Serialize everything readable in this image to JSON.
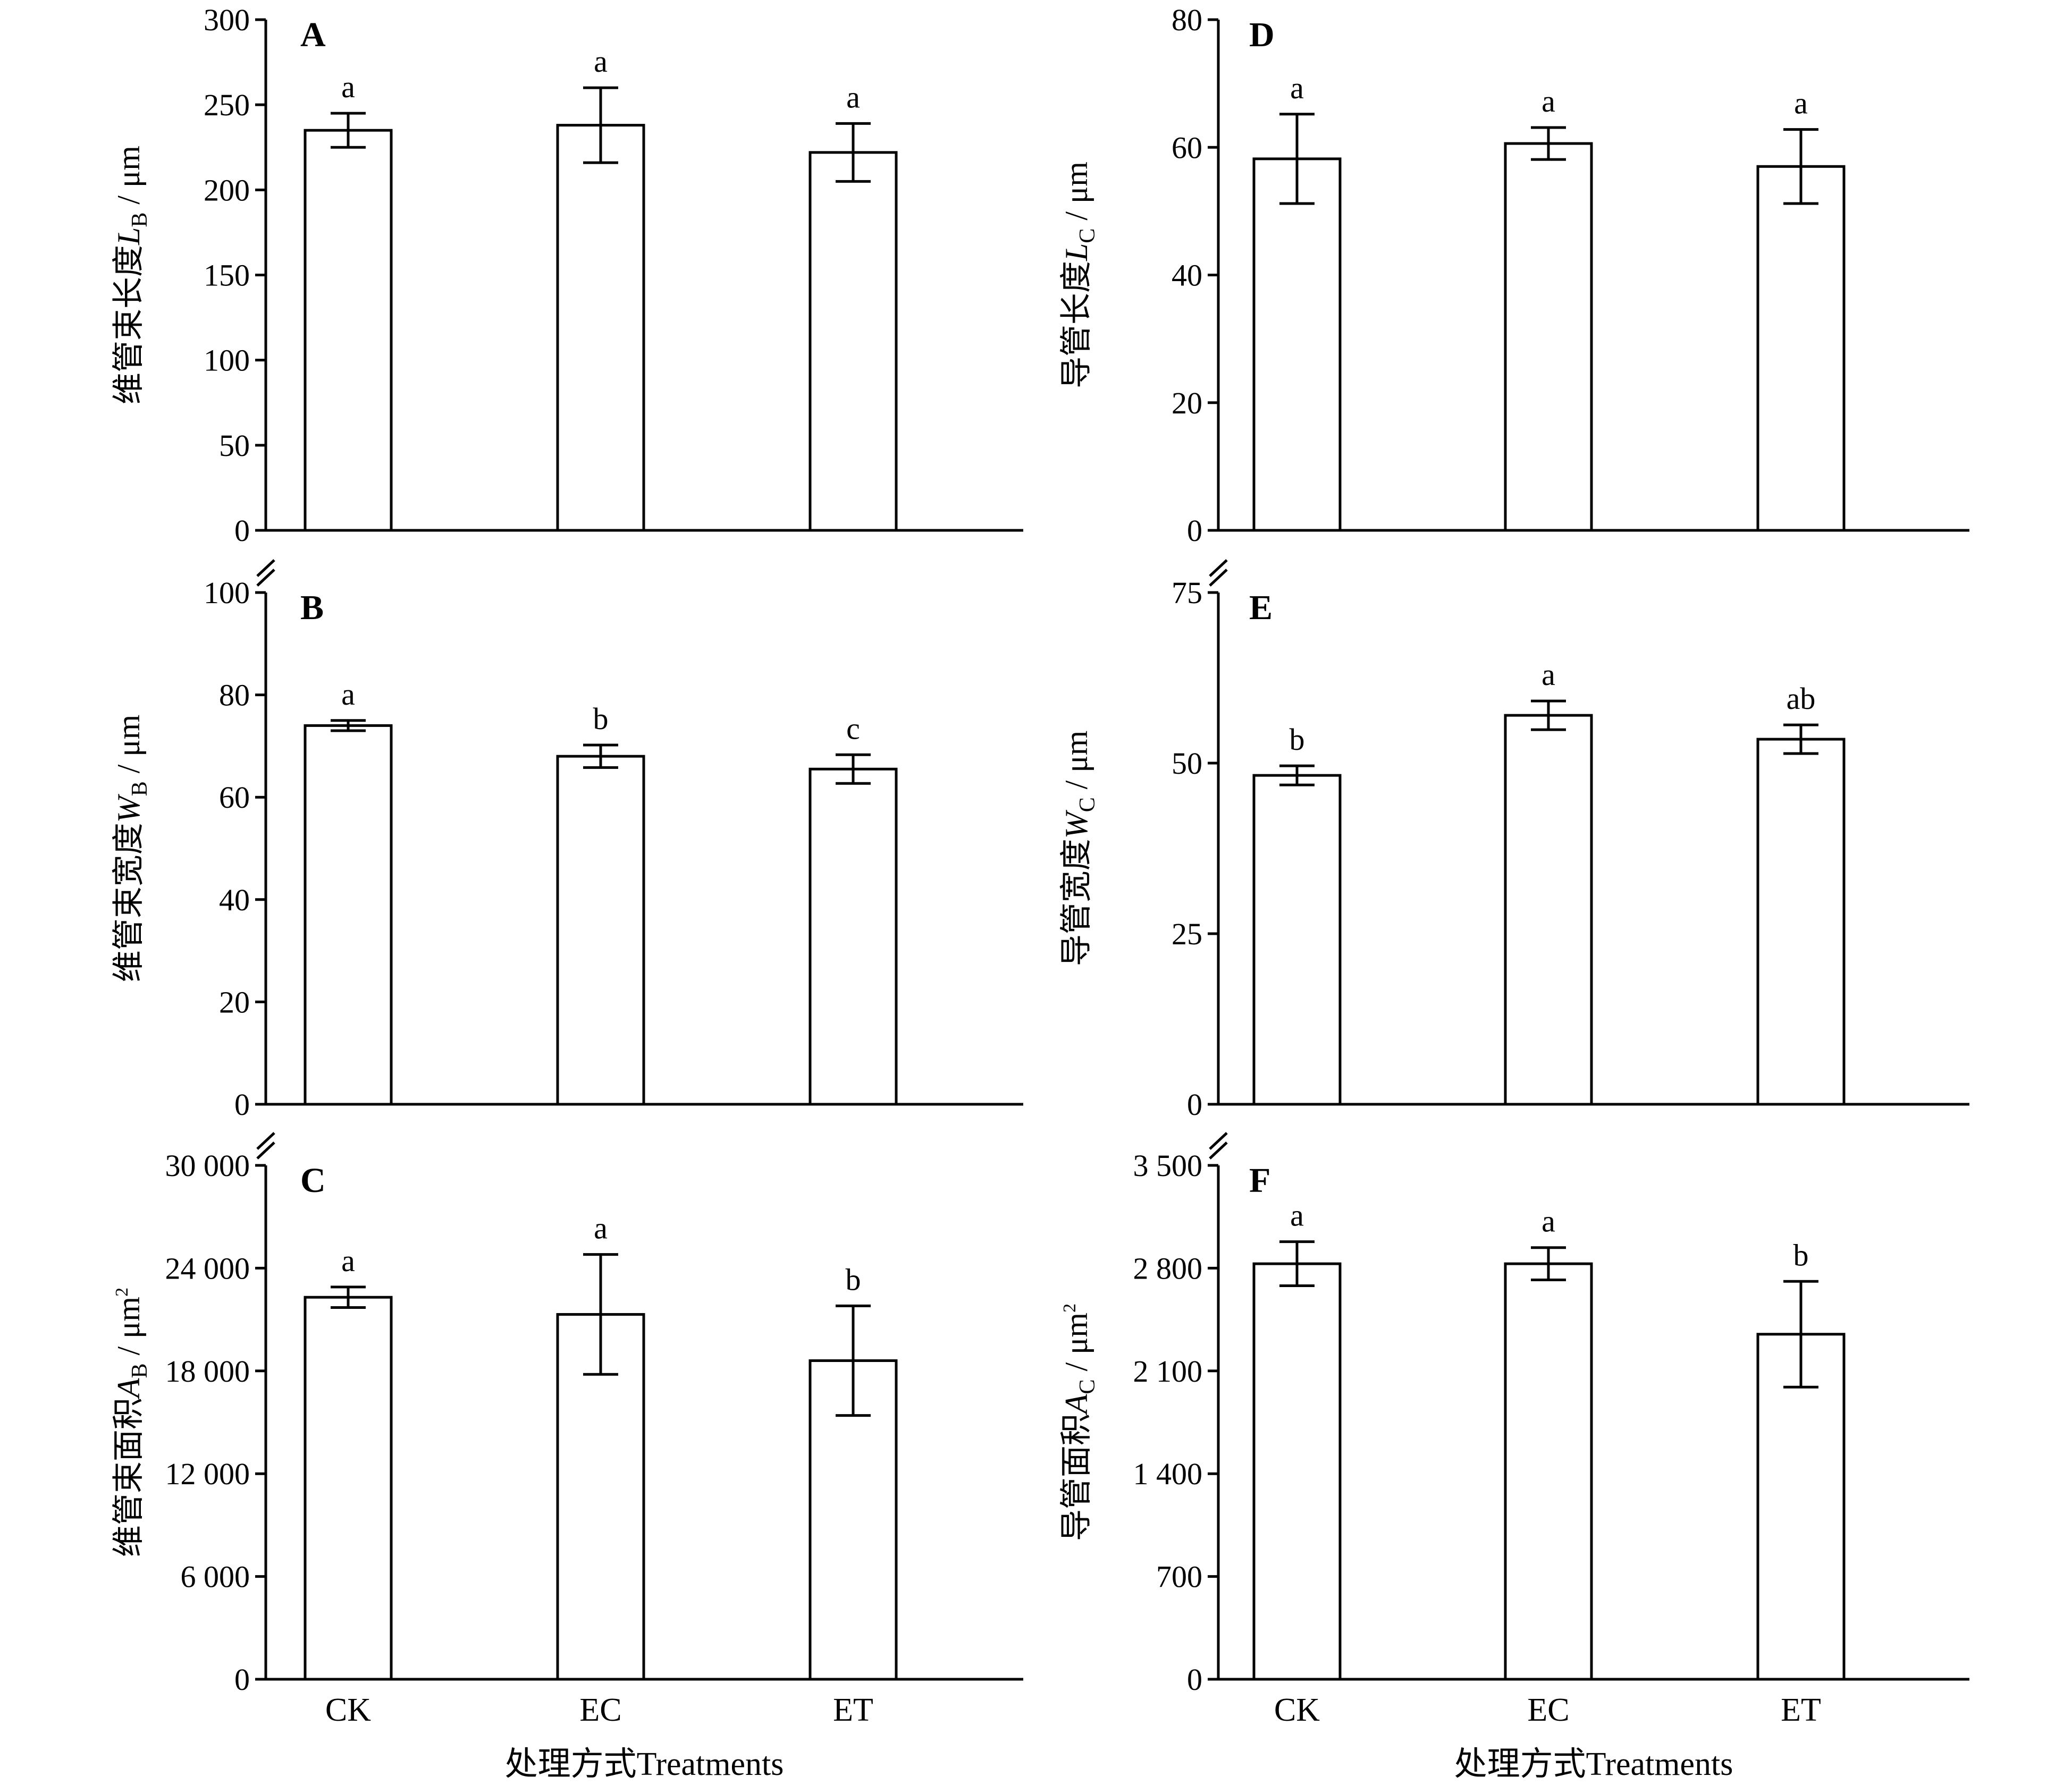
{
  "x_axis": {
    "title": "处理方式Treatments",
    "categories": [
      "CK",
      "EC",
      "ET"
    ]
  },
  "colors": {
    "bar_fill": "#ffffff",
    "stroke": "#000000"
  },
  "chart_data": [
    {
      "id": "A",
      "type": "bar",
      "panel_label": "A",
      "ylabel": {
        "main": "维管束长度",
        "var": "L",
        "sub": "B",
        "sup": "",
        "unit": " / μm"
      },
      "ylim": [
        0,
        300
      ],
      "yticks": [
        0,
        50,
        100,
        150,
        200,
        250,
        300
      ],
      "ytick_labels": [
        "0",
        "50",
        "100",
        "150",
        "200",
        "250",
        "300"
      ],
      "categories": [
        "CK",
        "EC",
        "ET"
      ],
      "values": [
        235,
        238,
        222
      ],
      "errors": [
        10,
        22,
        17
      ],
      "letters": [
        "a",
        "a",
        "a"
      ],
      "axis_break": false
    },
    {
      "id": "B",
      "type": "bar",
      "panel_label": "B",
      "ylabel": {
        "main": "维管束宽度",
        "var": "W",
        "sub": "B",
        "sup": "",
        "unit": " / μm"
      },
      "ylim": [
        0,
        100
      ],
      "yticks": [
        0,
        20,
        40,
        60,
        80,
        100
      ],
      "ytick_labels": [
        "0",
        "20",
        "40",
        "60",
        "80",
        "100"
      ],
      "categories": [
        "CK",
        "EC",
        "ET"
      ],
      "values": [
        74,
        68,
        65.5
      ],
      "errors": [
        1,
        2.2,
        2.8
      ],
      "letters": [
        "a",
        "b",
        "c"
      ],
      "axis_break": true
    },
    {
      "id": "C",
      "type": "bar",
      "panel_label": "C",
      "ylabel": {
        "main": "维管束面积",
        "var": "A",
        "sub": "B",
        "sup": "2",
        "unit": " / μm"
      },
      "ylim": [
        0,
        30000
      ],
      "yticks": [
        0,
        6000,
        12000,
        18000,
        24000,
        30000
      ],
      "ytick_labels": [
        "0",
        "6 000",
        "12 000",
        "18 000",
        "24 000",
        "30 000"
      ],
      "categories": [
        "CK",
        "EC",
        "ET"
      ],
      "values": [
        22300,
        21300,
        18600
      ],
      "errors": [
        600,
        3500,
        3200
      ],
      "letters": [
        "a",
        "a",
        "b"
      ],
      "axis_break": true
    },
    {
      "id": "D",
      "type": "bar",
      "panel_label": "D",
      "ylabel": {
        "main": "导管长度",
        "var": "L",
        "sub": "C",
        "sup": "",
        "unit": " / μm"
      },
      "ylim": [
        0,
        80
      ],
      "yticks": [
        0,
        20,
        40,
        60,
        80
      ],
      "ytick_labels": [
        "0",
        "20",
        "40",
        "60",
        "80"
      ],
      "categories": [
        "CK",
        "EC",
        "ET"
      ],
      "values": [
        58.2,
        60.6,
        57
      ],
      "errors": [
        7,
        2.5,
        5.8
      ],
      "letters": [
        "a",
        "a",
        "a"
      ],
      "axis_break": false
    },
    {
      "id": "E",
      "type": "bar",
      "panel_label": "E",
      "ylabel": {
        "main": "导管宽度",
        "var": "W",
        "sub": "C",
        "sup": "",
        "unit": " / μm"
      },
      "ylim": [
        0,
        75
      ],
      "yticks": [
        0,
        25,
        50,
        75
      ],
      "ytick_labels": [
        "0",
        "25",
        "50",
        "75"
      ],
      "categories": [
        "CK",
        "EC",
        "ET"
      ],
      "values": [
        48.2,
        57,
        53.5
      ],
      "errors": [
        1.4,
        2.1,
        2.1
      ],
      "letters": [
        "b",
        "a",
        "ab"
      ],
      "axis_break": true
    },
    {
      "id": "F",
      "type": "bar",
      "panel_label": "F",
      "ylabel": {
        "main": "导管面积",
        "var": "A",
        "sub": "C",
        "sup": "2",
        "unit": " / μm"
      },
      "ylim": [
        0,
        3500
      ],
      "yticks": [
        0,
        700,
        1400,
        2100,
        2800,
        3500
      ],
      "ytick_labels": [
        "0",
        "700",
        "1 400",
        "2 100",
        "2 800",
        "3 500"
      ],
      "categories": [
        "CK",
        "EC",
        "ET"
      ],
      "values": [
        2830,
        2830,
        2350
      ],
      "errors": [
        150,
        110,
        360
      ],
      "letters": [
        "a",
        "a",
        "b"
      ],
      "axis_break": true
    }
  ]
}
